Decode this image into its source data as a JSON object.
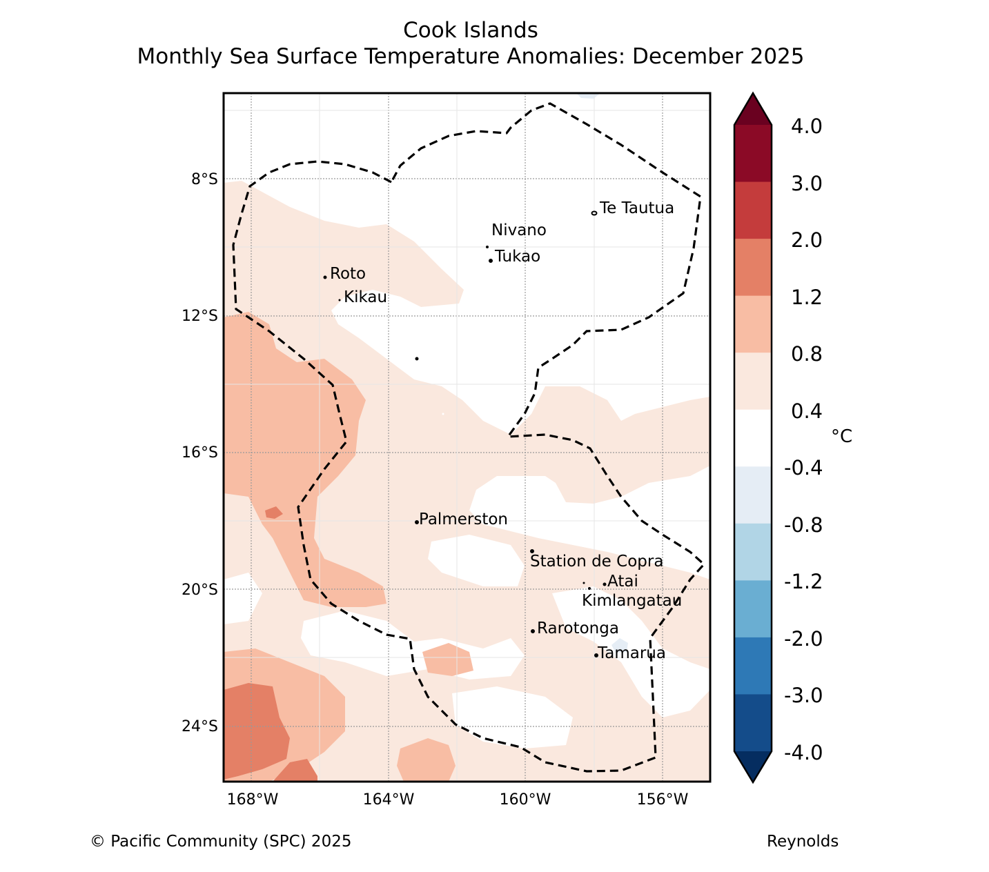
{
  "title": {
    "region": "Cook Islands",
    "subtitle": "Monthly Sea Surface Temperature Anomalies: December 2025"
  },
  "map": {
    "lat_labels": [
      "8°S",
      "12°S",
      "16°S",
      "20°S",
      "24°S"
    ],
    "lon_labels": [
      "168°W",
      "164°W",
      "160°W",
      "156°W"
    ],
    "extent": {
      "lon_min": -168.8,
      "lon_max": -154.6,
      "lat_min": -25.5,
      "lat_max": -5.5
    },
    "places": [
      {
        "name": "Te Tautua",
        "lon": -157.95,
        "lat": -9.0
      },
      {
        "name": "Nivano",
        "lon": -161.0,
        "lat": -10.0
      },
      {
        "name": "Tukao",
        "lon": -160.9,
        "lat": -10.4
      },
      {
        "name": "Roto",
        "lon": -165.85,
        "lat": -10.9
      },
      {
        "name": "Kikau",
        "lon": -165.4,
        "lat": -11.5
      },
      {
        "name": "Palmerston",
        "lon": -163.15,
        "lat": -18.05
      },
      {
        "name": "Station de Copra",
        "lon": -159.8,
        "lat": -18.85
      },
      {
        "name": "Atai",
        "lon": -157.6,
        "lat": -19.85
      },
      {
        "name": "Kimlangatau",
        "lon": -158.2,
        "lat": -19.95
      },
      {
        "name": "Rarotonga",
        "lon": -159.8,
        "lat": -21.2
      },
      {
        "name": "Tamarua",
        "lon": -157.9,
        "lat": -21.9
      }
    ]
  },
  "colorbar": {
    "unit": "°C",
    "ticks": [
      "4.0",
      "3.0",
      "2.0",
      "1.2",
      "0.8",
      "0.4",
      "-0.4",
      "-0.8",
      "-1.2",
      "-2.0",
      "-3.0",
      "-4.0"
    ],
    "colors_top_to_bottom": [
      "#8b0a26",
      "#c43c3c",
      "#e48066",
      "#f8bda4",
      "#fae8de",
      "#ffffff",
      "#e5edf5",
      "#b1d5e6",
      "#6aaed2",
      "#2e79b6",
      "#144c8a"
    ],
    "extend_max_color": "#6a0120",
    "extend_min_color": "#052d60"
  },
  "palette": {
    "anom_0_4_0_8": "#fae8de",
    "anom_0_8_1_2": "#f8bda4",
    "anom_1_2_2_0": "#e48066",
    "anom_neg_0_4": "#e5edf5"
  },
  "footer": {
    "copyright": "© Pacific Community (SPC) 2025",
    "source": "Reynolds"
  }
}
